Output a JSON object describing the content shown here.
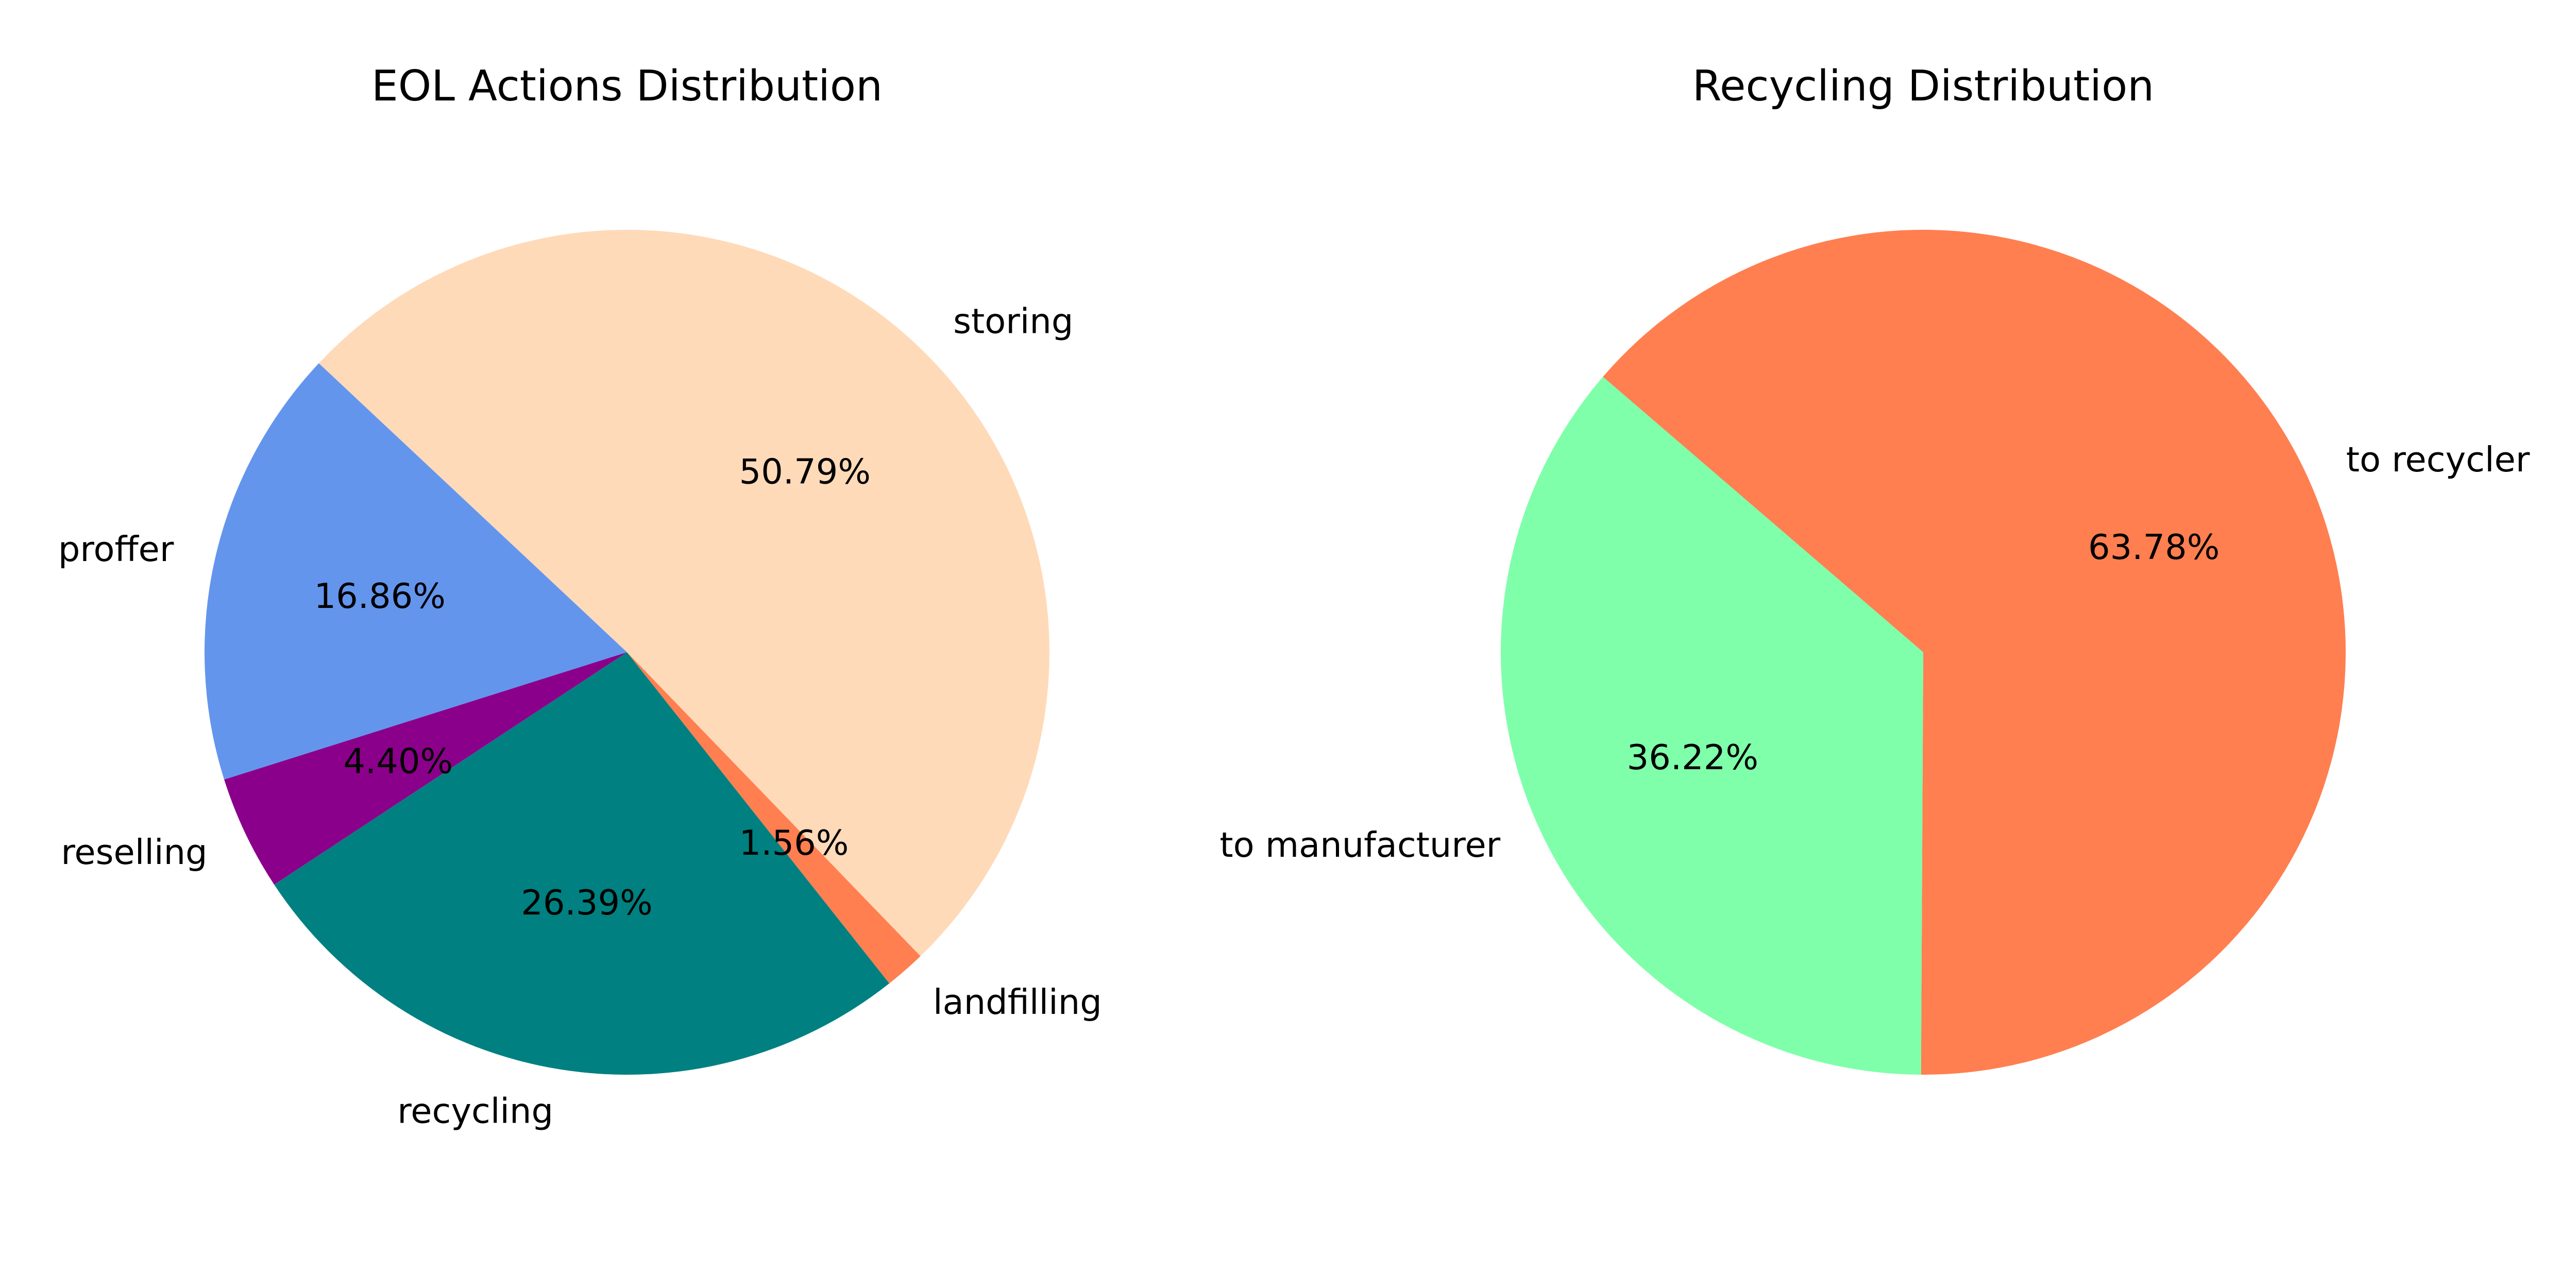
{
  "chart_data": [
    {
      "type": "pie",
      "title": "EOL Actions Distribution",
      "categories": [
        "storing",
        "proffer",
        "reselling",
        "recycling",
        "landfilling"
      ],
      "values": [
        50.79,
        16.86,
        4.4,
        26.39,
        1.56
      ],
      "value_labels": [
        "50.79%",
        "16.86%",
        "4.40%",
        "26.39%",
        "1.56%"
      ],
      "colors": [
        "#FFDAB9",
        "#6495ED",
        "#8B008B",
        "#008080",
        "#FF7F50"
      ],
      "start_angle_deg": -46,
      "direction": "counterclockwise"
    },
    {
      "type": "pie",
      "title": "Recycling Distribution",
      "categories": [
        "to recycler",
        "to manufacturer"
      ],
      "values": [
        63.78,
        36.22
      ],
      "value_labels": [
        "63.78%",
        "36.22%"
      ],
      "colors": [
        "#FF7F50",
        "#7FFFAA"
      ],
      "start_angle_deg": -90.3,
      "direction": "counterclockwise"
    }
  ]
}
